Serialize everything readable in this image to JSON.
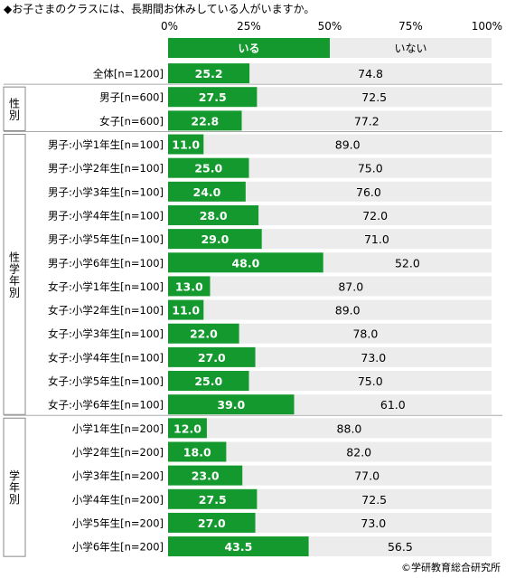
{
  "title": "◆お子さまのクラスには、長期間お休みしている人がいますか。",
  "credit": "©学研教育総合研究所",
  "colors": {
    "yes": "#14992e",
    "no": "#ececec",
    "text_on_yes": "#ffffff",
    "text_on_no": "#000000"
  },
  "chart_data": {
    "type": "bar",
    "orientation": "horizontal",
    "stacked": true,
    "percent": true,
    "xlim": [
      0,
      100
    ],
    "x_ticks": [
      "0%",
      "25%",
      "50%",
      "75%",
      "100%"
    ],
    "series": [
      {
        "name": "いる",
        "color": "#14992e"
      },
      {
        "name": "いない",
        "color": "#ececec"
      }
    ],
    "groups": [
      {
        "label": "",
        "rows": [
          {
            "label": "全体[n=1200]",
            "values": [
              25.2,
              74.8
            ],
            "display": [
              "25.2",
              "74.8"
            ]
          }
        ]
      },
      {
        "label": "性別",
        "rows": [
          {
            "label": "男子[n=600]",
            "values": [
              27.5,
              72.5
            ],
            "display": [
              "27.5",
              "72.5"
            ]
          },
          {
            "label": "女子[n=600]",
            "values": [
              22.8,
              77.2
            ],
            "display": [
              "22.8",
              "77.2"
            ]
          }
        ]
      },
      {
        "label": "性学年別",
        "rows": [
          {
            "label": "男子:小学1年生[n=100]",
            "values": [
              11.0,
              89.0
            ],
            "display": [
              "11.0",
              "89.0"
            ]
          },
          {
            "label": "男子:小学2年生[n=100]",
            "values": [
              25.0,
              75.0
            ],
            "display": [
              "25.0",
              "75.0"
            ]
          },
          {
            "label": "男子:小学3年生[n=100]",
            "values": [
              24.0,
              76.0
            ],
            "display": [
              "24.0",
              "76.0"
            ]
          },
          {
            "label": "男子:小学4年生[n=100]",
            "values": [
              28.0,
              72.0
            ],
            "display": [
              "28.0",
              "72.0"
            ]
          },
          {
            "label": "男子:小学5年生[n=100]",
            "values": [
              29.0,
              71.0
            ],
            "display": [
              "29.0",
              "71.0"
            ]
          },
          {
            "label": "男子:小学6年生[n=100]",
            "values": [
              48.0,
              52.0
            ],
            "display": [
              "48.0",
              "52.0"
            ]
          },
          {
            "label": "女子:小学1年生[n=100]",
            "values": [
              13.0,
              87.0
            ],
            "display": [
              "13.0",
              "87.0"
            ]
          },
          {
            "label": "女子:小学2年生[n=100]",
            "values": [
              11.0,
              89.0
            ],
            "display": [
              "11.0",
              "89.0"
            ]
          },
          {
            "label": "女子:小学3年生[n=100]",
            "values": [
              22.0,
              78.0
            ],
            "display": [
              "22.0",
              "78.0"
            ]
          },
          {
            "label": "女子:小学4年生[n=100]",
            "values": [
              27.0,
              73.0
            ],
            "display": [
              "27.0",
              "73.0"
            ]
          },
          {
            "label": "女子:小学5年生[n=100]",
            "values": [
              25.0,
              75.0
            ],
            "display": [
              "25.0",
              "75.0"
            ]
          },
          {
            "label": "女子:小学6年生[n=100]",
            "values": [
              39.0,
              61.0
            ],
            "display": [
              "39.0",
              "61.0"
            ]
          }
        ]
      },
      {
        "label": "学年別",
        "rows": [
          {
            "label": "小学1年生[n=200]",
            "values": [
              12.0,
              88.0
            ],
            "display": [
              "12.0",
              "88.0"
            ]
          },
          {
            "label": "小学2年生[n=200]",
            "values": [
              18.0,
              82.0
            ],
            "display": [
              "18.0",
              "82.0"
            ]
          },
          {
            "label": "小学3年生[n=200]",
            "values": [
              23.0,
              77.0
            ],
            "display": [
              "23.0",
              "77.0"
            ]
          },
          {
            "label": "小学4年生[n=200]",
            "values": [
              27.5,
              72.5
            ],
            "display": [
              "27.5",
              "72.5"
            ]
          },
          {
            "label": "小学5年生[n=200]",
            "values": [
              27.0,
              73.0
            ],
            "display": [
              "27.0",
              "73.0"
            ]
          },
          {
            "label": "小学6年生[n=200]",
            "values": [
              43.5,
              56.5
            ],
            "display": [
              "43.5",
              "56.5"
            ]
          }
        ]
      }
    ]
  }
}
